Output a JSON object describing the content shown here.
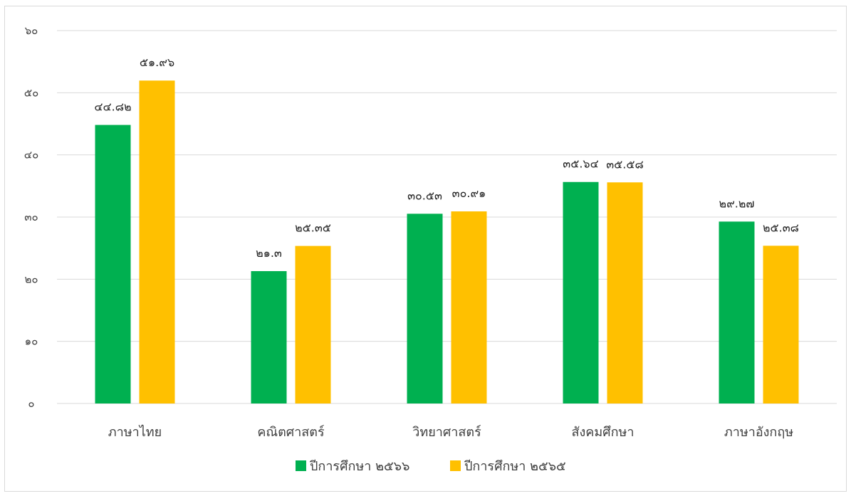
{
  "colors": {
    "series_1": "#00b050",
    "series_2": "#ffc000",
    "grid": "#d9d9d9"
  },
  "chart_data": {
    "type": "bar",
    "categories": [
      "ภาษาไทย",
      "คณิตศาสตร์",
      "วิทยาศาสตร์",
      "สังคมศึกษา",
      "ภาษาอังกฤษ"
    ],
    "series": [
      {
        "name": "ปีการศึกษา ๒๕๖๖",
        "values": [
          44.82,
          21.3,
          30.53,
          35.64,
          29.27
        ],
        "labels": [
          "๔๔.๘๒",
          "๒๑.๓",
          "๓๐.๕๓",
          "๓๕.๖๔",
          "๒๙.๒๗"
        ]
      },
      {
        "name": "ปีการศึกษา ๒๕๖๕",
        "values": [
          51.96,
          25.35,
          30.91,
          35.58,
          25.38
        ],
        "labels": [
          "๕๑.๙๖",
          "๒๕.๓๕",
          "๓๐.๙๑",
          "๓๕.๕๘",
          "๒๕.๓๘"
        ]
      }
    ],
    "ylim": [
      0,
      60
    ],
    "yticks": [
      0,
      10,
      20,
      30,
      40,
      50,
      60
    ],
    "ytick_labels": [
      "๐",
      "๑๐",
      "๒๐",
      "๓๐",
      "๔๐",
      "๕๐",
      "๖๐"
    ],
    "grid": true,
    "legend": "bottom"
  }
}
